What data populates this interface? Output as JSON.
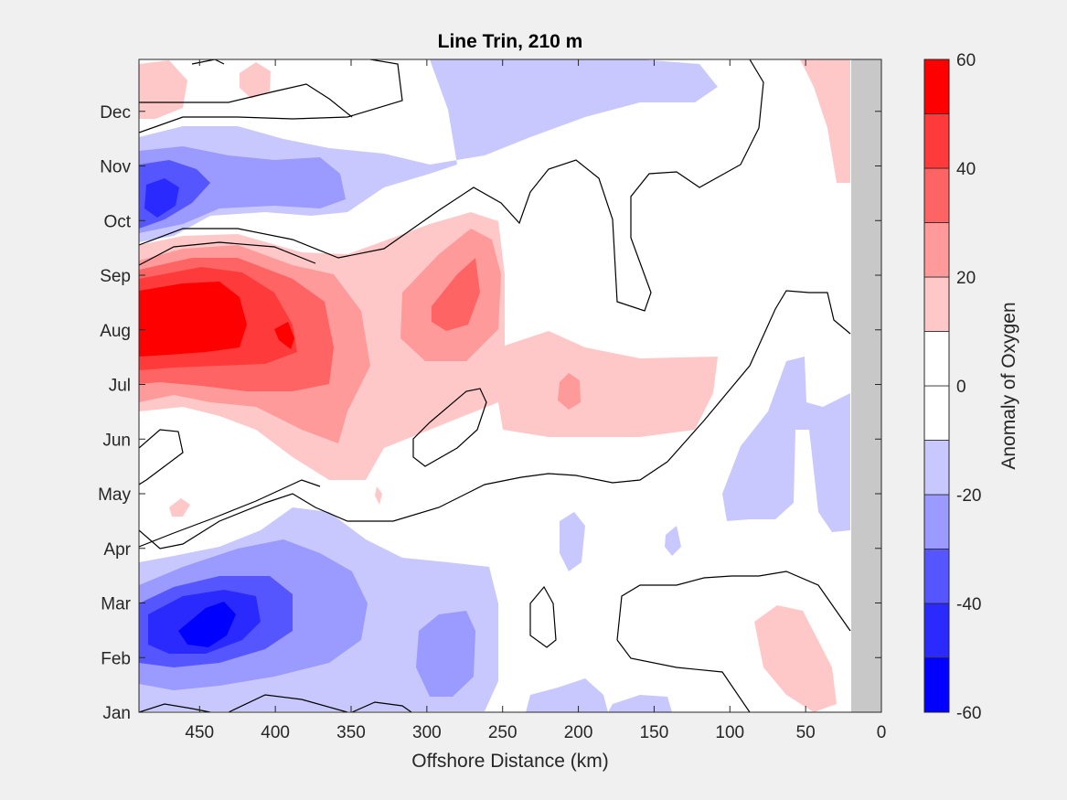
{
  "chart_data": {
    "type": "heatmap",
    "title": "Line Trin, 210 m",
    "xlabel": "Offshore Distance (km)",
    "ylabel": "",
    "colorbar_label": "Anomaly of Oxygen",
    "xlim": [
      490,
      0
    ],
    "x_reversed": true,
    "x_ticks": [
      450,
      400,
      350,
      300,
      250,
      200,
      150,
      100,
      50,
      0
    ],
    "y_ticks": [
      "Jan",
      "Feb",
      "Mar",
      "Apr",
      "May",
      "Jun",
      "Jul",
      "Aug",
      "Sep",
      "Oct",
      "Nov",
      "Dec"
    ],
    "y_tick_months": [
      0,
      1,
      2,
      3,
      4,
      5,
      6,
      7,
      8,
      9,
      10,
      11
    ],
    "ylim_months": [
      0,
      11.95
    ],
    "color_levels": [
      -60,
      -50,
      -40,
      -30,
      -20,
      -10,
      0,
      10,
      20,
      30,
      40,
      50,
      60
    ],
    "colorbar_ticks": [
      60,
      40,
      20,
      0,
      -20,
      -40,
      -60
    ],
    "colormap": [
      "#0000ff",
      "#2a2aff",
      "#5656ff",
      "#9a9aff",
      "#c8c8ff",
      "#ffffff",
      "#ffffff",
      "#ffc8c8",
      "#ff9a9a",
      "#ff6464",
      "#ff3a3a",
      "#ff0000"
    ],
    "no_data_color": "#c8c8c8",
    "no_data_x_range_km": [
      20,
      0
    ],
    "contour_line_level": 0,
    "features": [
      {
        "name": "Aug max (positive core)",
        "center_km": 450,
        "center_month": 7.2,
        "value": 55
      },
      {
        "name": "Aug secondary max",
        "center_km": 280,
        "center_month": 7.6,
        "value": 35
      },
      {
        "name": "Jul patch",
        "center_km": 210,
        "center_month": 6.0,
        "value": 22
      },
      {
        "name": "Feb/Mar min (negative core)",
        "center_km": 440,
        "center_month": 1.7,
        "value": -55
      },
      {
        "name": "Nov min",
        "center_km": 470,
        "center_month": 9.5,
        "value": -45
      },
      {
        "name": "Feb offshore min",
        "center_km": 285,
        "center_month": 1.4,
        "value": -25
      },
      {
        "name": "Feb nearshore max",
        "center_km": 50,
        "center_month": 1.0,
        "value": 15
      }
    ]
  }
}
